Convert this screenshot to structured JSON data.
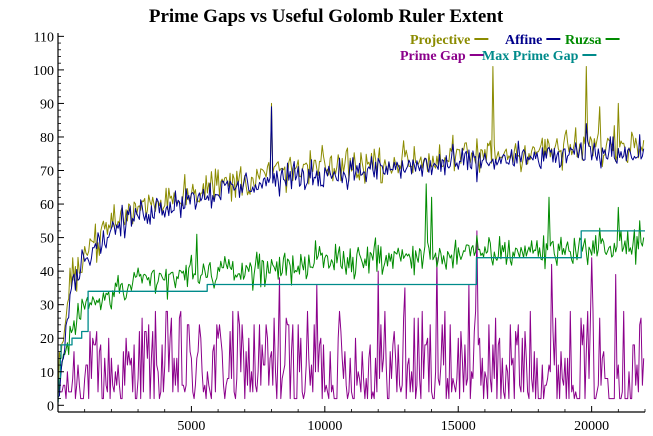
{
  "chart_data": {
    "type": "line",
    "title": "Prime Gaps vs Useful Golomb Ruler Extent",
    "xlabel": "",
    "ylabel": "",
    "xlim": [
      0,
      22000
    ],
    "ylim": [
      -2,
      111
    ],
    "x_ticks": [
      5000,
      10000,
      15000,
      20000
    ],
    "x_tick_labels": [
      "5000",
      "10000",
      "15000",
      "20000"
    ],
    "y_ticks": [
      0,
      10,
      20,
      30,
      40,
      50,
      60,
      70,
      80,
      90,
      100,
      110
    ],
    "y_tick_labels": [
      "0",
      "10",
      "20",
      "30",
      "40",
      "50",
      "60",
      "70",
      "80",
      "90",
      "100",
      "110"
    ],
    "legend_position": "top-right",
    "sample_step": 50,
    "series": [
      {
        "name": "Projective",
        "color": "#8b8b00",
        "model": "log_noisy",
        "trend_points": [
          [
            0,
            6
          ],
          [
            500,
            38
          ],
          [
            1000,
            46
          ],
          [
            2000,
            54
          ],
          [
            3000,
            59
          ],
          [
            5000,
            64
          ],
          [
            8000,
            69
          ],
          [
            10000,
            71
          ],
          [
            15000,
            74
          ],
          [
            20000,
            77
          ],
          [
            22000,
            78
          ]
        ],
        "noise": 4.5,
        "spikes": [
          [
            8000,
            90
          ],
          [
            16300,
            101
          ],
          [
            19800,
            101
          ],
          [
            21000,
            90
          ],
          [
            20300,
            89
          ]
        ]
      },
      {
        "name": "Affine",
        "color": "#00008b",
        "model": "log_noisy",
        "trend_points": [
          [
            0,
            5
          ],
          [
            500,
            36
          ],
          [
            1000,
            44
          ],
          [
            2000,
            52
          ],
          [
            3000,
            57
          ],
          [
            5000,
            62
          ],
          [
            8000,
            67
          ],
          [
            10000,
            69
          ],
          [
            15000,
            72
          ],
          [
            20000,
            75
          ],
          [
            22000,
            76
          ]
        ],
        "noise": 3.5,
        "spikes": [
          [
            8000,
            89
          ],
          [
            19800,
            84
          ]
        ]
      },
      {
        "name": "Ruzsa",
        "color": "#008b00",
        "model": "log_noisy",
        "trend_points": [
          [
            0,
            6
          ],
          [
            500,
            23
          ],
          [
            1000,
            29
          ],
          [
            2000,
            33
          ],
          [
            3000,
            36
          ],
          [
            5000,
            39
          ],
          [
            8000,
            41
          ],
          [
            10000,
            43
          ],
          [
            15000,
            45
          ],
          [
            20000,
            47
          ],
          [
            22000,
            48
          ]
        ],
        "noise": 4,
        "spikes": [
          [
            5200,
            51
          ],
          [
            13800,
            66
          ],
          [
            14000,
            62
          ],
          [
            18400,
            62
          ],
          [
            21000,
            59
          ],
          [
            21800,
            55
          ]
        ]
      },
      {
        "name": "Prime Gap",
        "color": "#8b008b",
        "model": "prime_gap",
        "max_gap": 52,
        "spikes": [
          [
            8300,
            38
          ],
          [
            9700,
            36
          ],
          [
            12000,
            40
          ],
          [
            13000,
            35
          ],
          [
            14200,
            44
          ],
          [
            15400,
            36
          ],
          [
            15700,
            52
          ],
          [
            18500,
            42
          ],
          [
            20000,
            44
          ],
          [
            20900,
            39
          ]
        ]
      },
      {
        "name": "Max Prime Gap",
        "color": "#008b8b",
        "model": "step",
        "steps": [
          [
            0,
            1
          ],
          [
            2,
            2
          ],
          [
            3,
            4
          ],
          [
            7,
            6
          ],
          [
            23,
            8
          ],
          [
            89,
            14
          ],
          [
            113,
            18
          ],
          [
            523,
            20
          ],
          [
            887,
            22
          ],
          [
            1129,
            34
          ],
          [
            1327,
            34
          ],
          [
            5591,
            36
          ],
          [
            8467,
            36
          ],
          [
            9551,
            36
          ],
          [
            15683,
            44
          ],
          [
            19609,
            52
          ],
          [
            22000,
            52
          ]
        ]
      }
    ]
  }
}
